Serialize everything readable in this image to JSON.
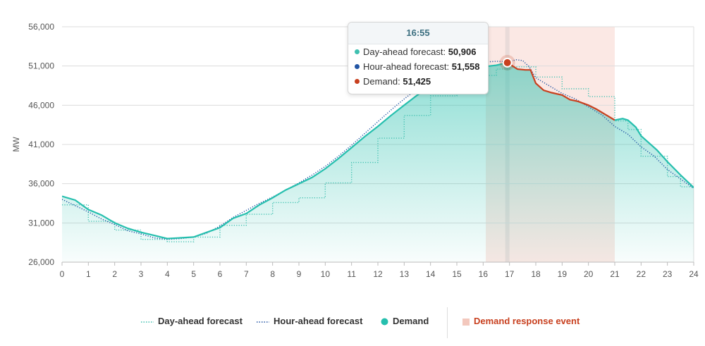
{
  "chart_data": {
    "type": "area",
    "title": "",
    "xlabel": "",
    "ylabel": "MW",
    "xlim": [
      0,
      24
    ],
    "ylim": [
      26000,
      56000
    ],
    "x_ticks": [
      "0",
      "1",
      "2",
      "3",
      "4",
      "5",
      "6",
      "7",
      "8",
      "9",
      "10",
      "11",
      "12",
      "13",
      "14",
      "15",
      "16",
      "17",
      "18",
      "19",
      "20",
      "21",
      "22",
      "23",
      "24"
    ],
    "y_ticks": [
      "26,000",
      "31,000",
      "36,000",
      "41,000",
      "46,000",
      "51,000",
      "56,000"
    ],
    "demand_response_event": {
      "start": 16.1,
      "end": 21.0,
      "label": "Demand response event",
      "color": "#fbe8e4"
    },
    "hover_marker_x": 16.92,
    "series": [
      {
        "name": "Day-ahead forecast",
        "style": "dotted",
        "color": "#3fc0b0",
        "x": [
          0,
          0.5,
          1,
          1.5,
          2,
          2.5,
          3,
          3.5,
          4,
          4.5,
          5,
          5.5,
          6,
          6.5,
          7,
          7.5,
          8,
          8.5,
          9,
          9.5,
          10,
          10.5,
          11,
          11.5,
          12,
          12.5,
          13,
          13.5,
          14,
          14.5,
          15,
          15.5,
          16,
          16.5,
          17,
          17.5,
          18,
          18.5,
          19,
          19.5,
          20,
          20.5,
          21,
          21.5,
          22,
          22.5,
          23,
          23.5,
          24
        ],
        "values": [
          33300,
          33300,
          31200,
          31200,
          30100,
          30100,
          28900,
          28900,
          28600,
          28600,
          29200,
          29200,
          30700,
          30700,
          32100,
          32100,
          33600,
          33600,
          34200,
          34200,
          36100,
          36100,
          38700,
          38700,
          41800,
          41800,
          44700,
          44700,
          47200,
          47200,
          48700,
          48700,
          49800,
          50600,
          50900,
          50900,
          49600,
          49600,
          48100,
          48100,
          47100,
          47100,
          44000,
          42900,
          39500,
          39500,
          36900,
          35600,
          35500
        ]
      },
      {
        "name": "Hour-ahead forecast",
        "style": "dotted",
        "color": "#2255a4",
        "x": [
          0,
          0.5,
          1,
          1.5,
          2,
          2.5,
          3,
          3.5,
          4,
          4.5,
          5,
          5.5,
          6,
          6.5,
          7,
          7.5,
          8,
          8.5,
          9,
          9.5,
          10,
          10.5,
          11,
          11.5,
          12,
          12.5,
          13,
          13.5,
          14,
          14.5,
          15,
          15.5,
          16,
          16.5,
          17,
          17.25,
          17.5,
          17.75,
          18,
          18.5,
          19,
          19.5,
          20,
          20.5,
          21,
          21.5,
          22,
          22.5,
          23,
          23.5,
          24
        ],
        "values": [
          34000,
          33200,
          32400,
          31500,
          30800,
          30000,
          29600,
          29100,
          28900,
          29000,
          29200,
          29700,
          30600,
          31700,
          32600,
          33500,
          34300,
          35200,
          36100,
          37100,
          38200,
          39500,
          40900,
          42400,
          43900,
          45400,
          46800,
          48100,
          49200,
          50100,
          50800,
          51300,
          51500,
          51600,
          51558,
          51800,
          51700,
          50900,
          49500,
          48500,
          47500,
          46800,
          45800,
          44800,
          43300,
          42300,
          40700,
          39500,
          37800,
          36600,
          35400
        ]
      },
      {
        "name": "Demand",
        "style": "solid",
        "color": "#26bfae",
        "event_color": "#c8401f",
        "x": [
          0,
          0.5,
          1,
          1.5,
          2,
          2.5,
          3,
          3.5,
          4,
          4.5,
          5,
          5.5,
          6,
          6.5,
          7,
          7.5,
          8,
          8.5,
          9,
          9.5,
          10,
          10.5,
          11,
          11.5,
          12,
          12.5,
          13,
          13.5,
          14,
          14.5,
          15,
          15.5,
          16,
          16.5,
          16.92,
          17.3,
          17.6,
          17.8,
          18,
          18.3,
          18.6,
          19,
          19.3,
          19.6,
          20,
          20.3,
          20.6,
          21,
          21.3,
          21.5,
          21.8,
          22,
          22.3,
          22.6,
          23,
          23.5,
          24
        ],
        "values": [
          34400,
          33900,
          32700,
          32000,
          31000,
          30300,
          29800,
          29400,
          29000,
          29100,
          29200,
          29800,
          30400,
          31600,
          32200,
          33300,
          34200,
          35200,
          36000,
          36800,
          37900,
          39200,
          40600,
          42000,
          43300,
          44700,
          46000,
          47300,
          48400,
          49400,
          50100,
          50700,
          50900,
          51100,
          51425,
          50600,
          50500,
          50500,
          48800,
          47900,
          47600,
          47300,
          46700,
          46500,
          46000,
          45500,
          44900,
          44100,
          44300,
          44100,
          43200,
          42100,
          41200,
          40300,
          38800,
          37100,
          35500
        ]
      }
    ],
    "tooltip": {
      "time": "16:55",
      "rows": [
        {
          "label": "Day-ahead forecast:",
          "value": "50,906",
          "color": "#3fc0b0"
        },
        {
          "label": "Hour-ahead forecast:",
          "value": "51,558",
          "color": "#2255a4"
        },
        {
          "label": "Demand:",
          "value": "51,425",
          "color": "#c8401f"
        }
      ]
    },
    "legend": {
      "day_ahead": "Day-ahead forecast",
      "hour_ahead": "Hour-ahead forecast",
      "demand": "Demand",
      "event": "Demand response event"
    }
  }
}
